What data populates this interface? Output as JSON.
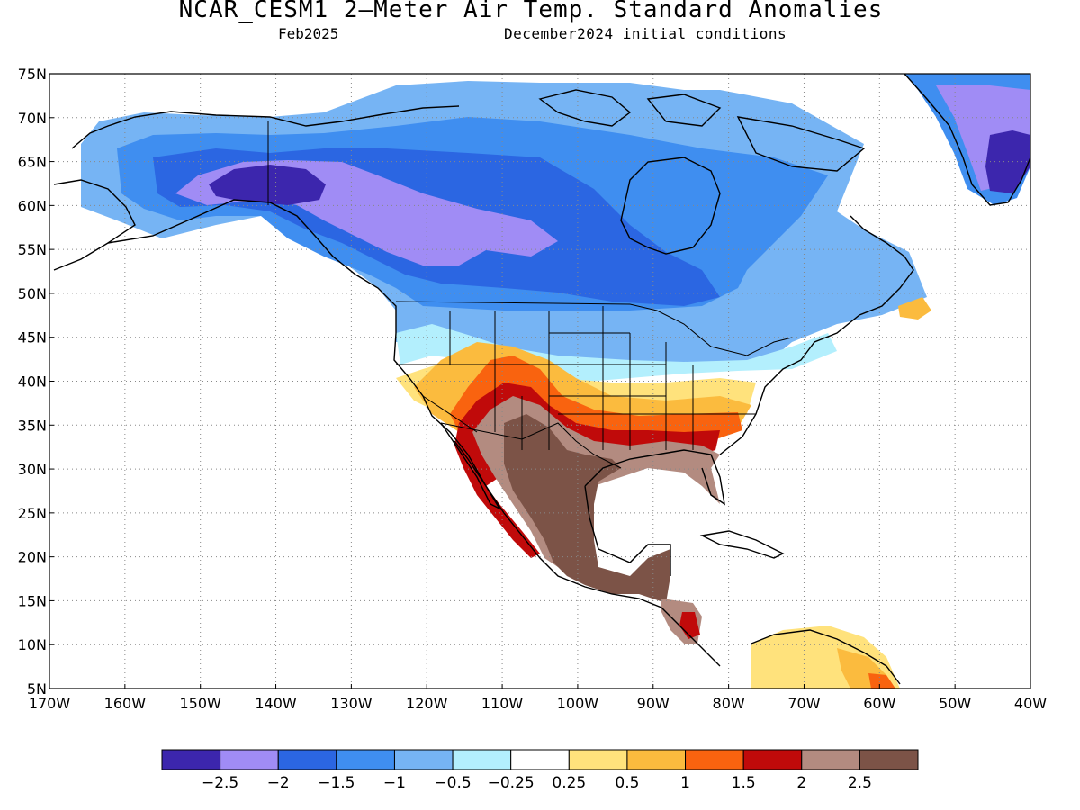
{
  "title": "NCAR_CESM1 2—Meter Air Temp. Standard Anomalies",
  "subtitle_left": "Feb2025",
  "subtitle_right": "December2024 initial conditions",
  "lat_labels": [
    "75N",
    "70N",
    "65N",
    "60N",
    "55N",
    "50N",
    "45N",
    "40N",
    "35N",
    "30N",
    "25N",
    "20N",
    "15N",
    "10N",
    "5N"
  ],
  "lon_labels": [
    "170W",
    "160W",
    "150W",
    "140W",
    "130W",
    "120W",
    "110W",
    "100W",
    "90W",
    "80W",
    "70W",
    "60W",
    "50W",
    "40W"
  ],
  "colorbar": {
    "colors": [
      "#3c26ad",
      "#a08cf5",
      "#2b66e2",
      "#3f8ef0",
      "#76b4f4",
      "#b3effd",
      "#ffffff",
      "#ffe27c",
      "#fbbb3e",
      "#f9630f",
      "#c00a0a",
      "#b38b80",
      "#7c5347"
    ],
    "labels": [
      "−2.5",
      "−2",
      "−1.5",
      "−1",
      "−0.5",
      "−0.25",
      "0.25",
      "0.5",
      "1",
      "1.5",
      "2",
      "2.5"
    ]
  },
  "colors": {
    "coast": "#000000",
    "grid": "#888888",
    "frame": "#000000"
  }
}
